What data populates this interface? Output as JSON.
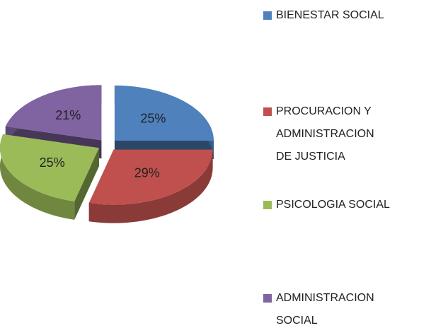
{
  "chart_data": {
    "type": "pie",
    "categories": [
      "BIENESTAR SOCIAL",
      "PROCURACION Y ADMINISTRACION DE JUSTICIA",
      "PSICOLOGIA SOCIAL",
      "ADMINISTRACION SOCIAL"
    ],
    "values": [
      25,
      29,
      25,
      21
    ],
    "value_labels": [
      "25%",
      "29%",
      "25%",
      "21%"
    ],
    "colors": [
      "#4f81bd",
      "#c0504d",
      "#9bbb59",
      "#8064a2"
    ]
  }
}
